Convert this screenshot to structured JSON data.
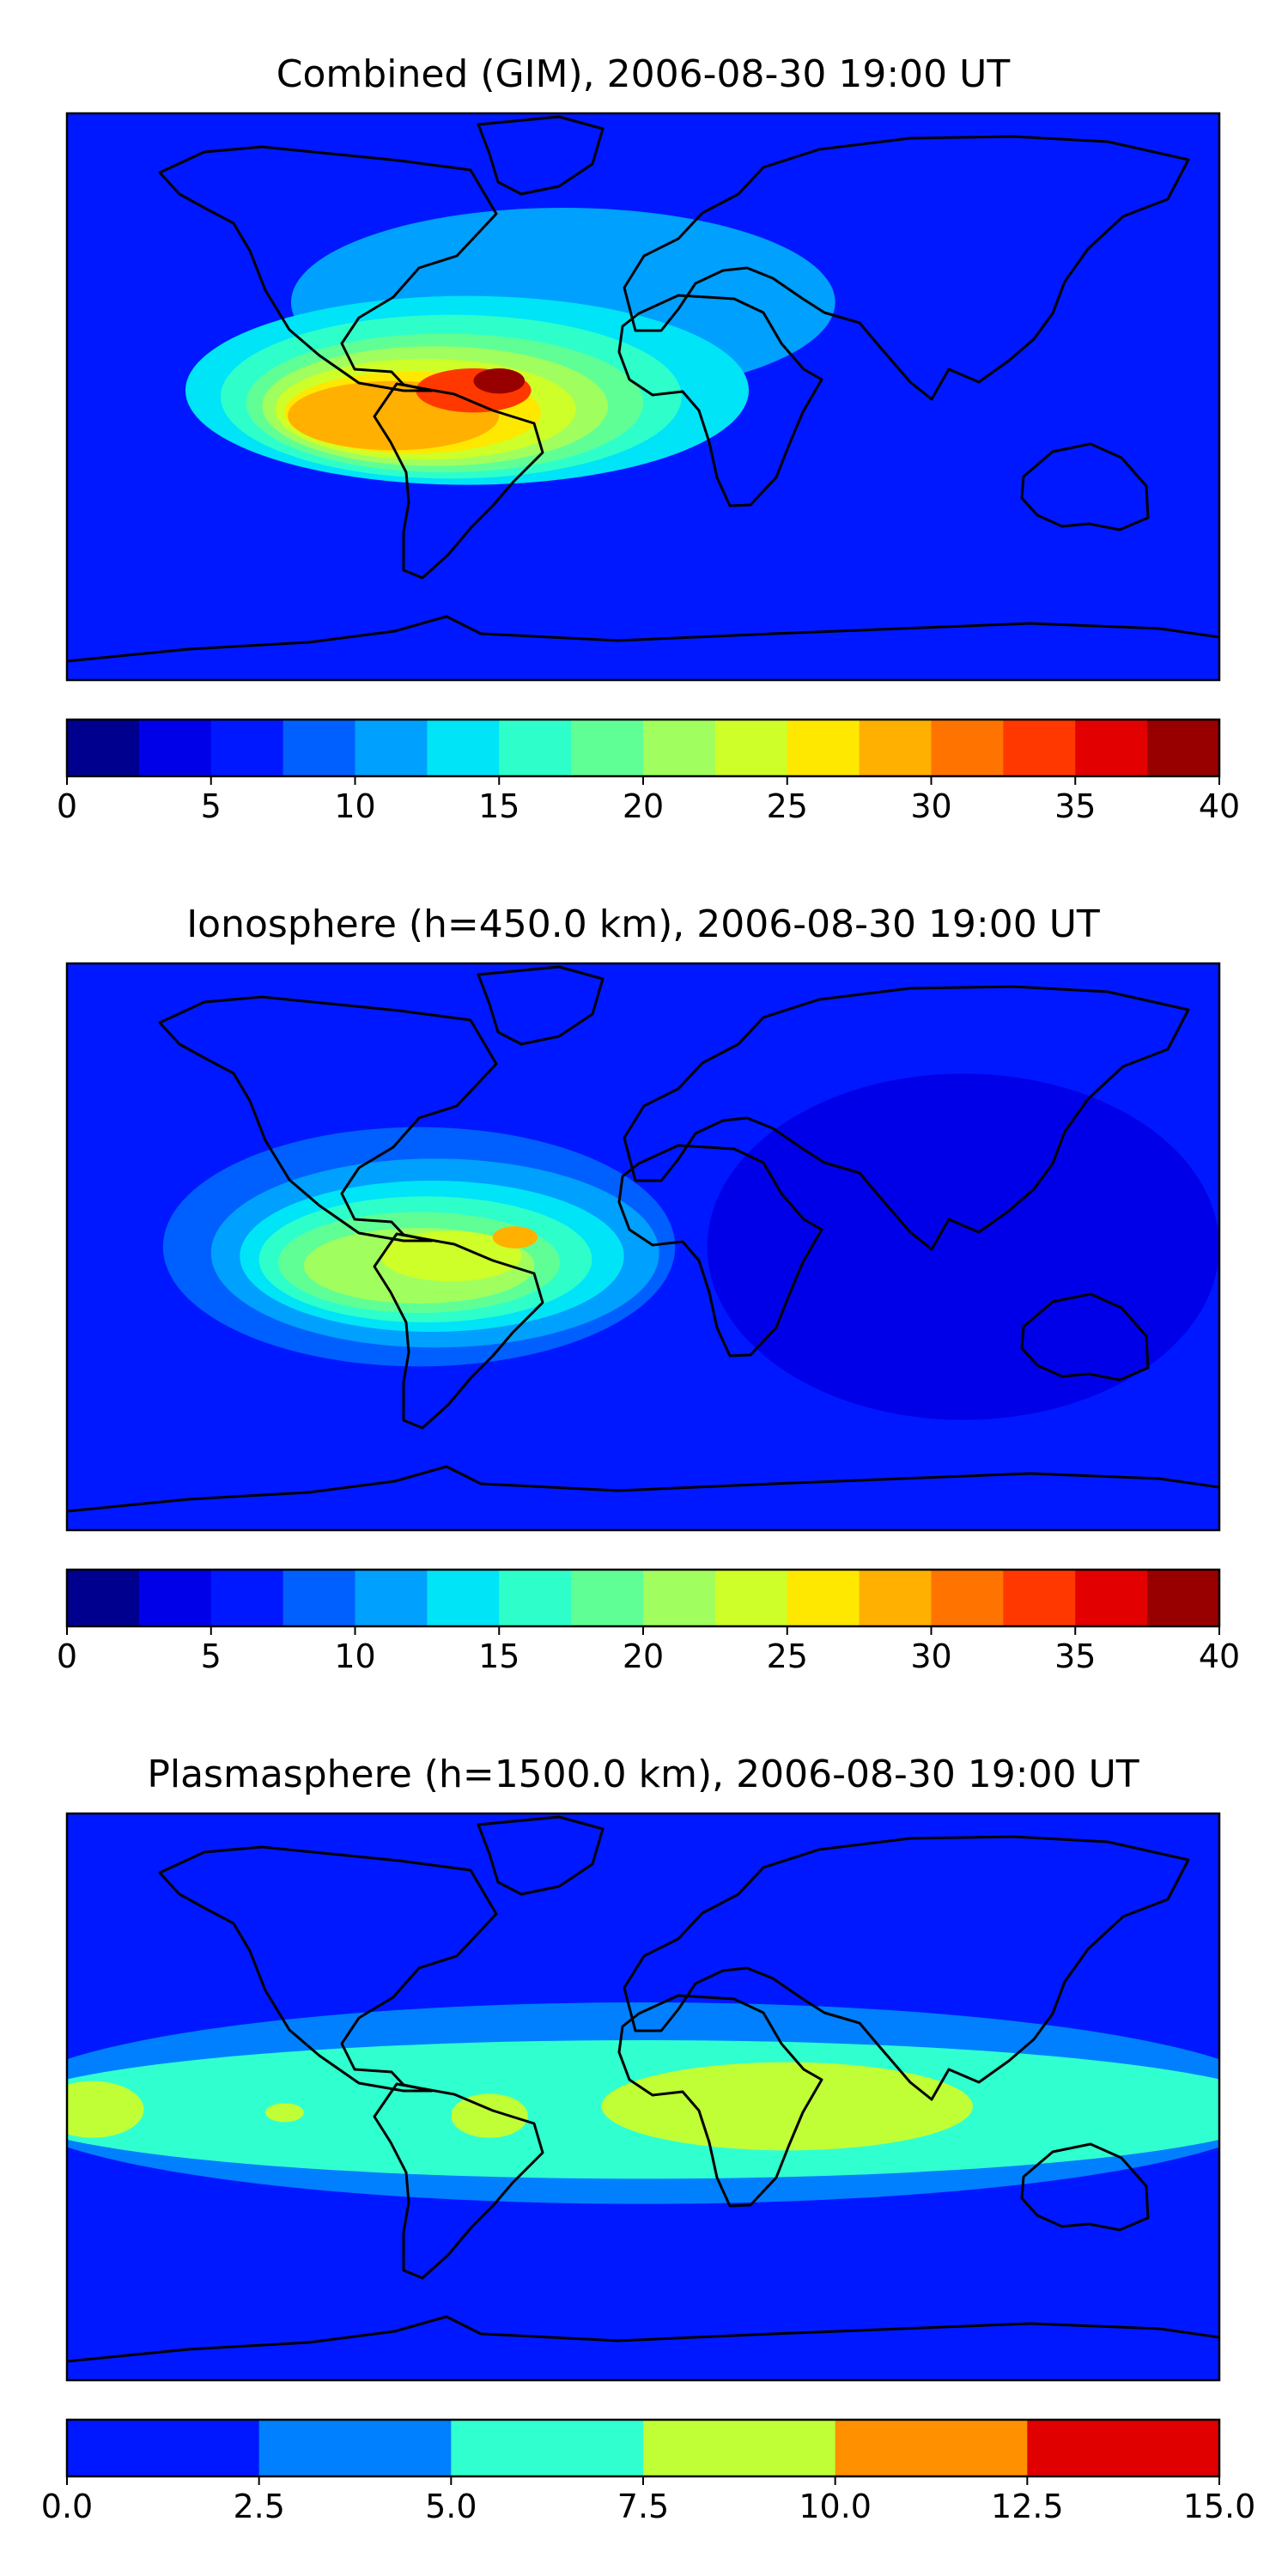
{
  "chart_data": [
    {
      "type": "heatmap",
      "title": "Combined (GIM), 2006-08-30 19:00 UT",
      "colorbar": {
        "range": [
          0,
          40
        ],
        "ticks": [
          "0",
          "5",
          "10",
          "15",
          "20",
          "25",
          "30",
          "35",
          "40"
        ],
        "colors": [
          "#00008f",
          "#0000e8",
          "#0018ff",
          "#0060ff",
          "#00a0ff",
          "#00e4f8",
          "#2effca",
          "#60ff96",
          "#a0ff5e",
          "#ceff28",
          "#ffe800",
          "#ffb000",
          "#ff7400",
          "#ff3800",
          "#e20000",
          "#980000"
        ]
      },
      "background_level": 5,
      "features": [
        {
          "name": "north-atlantic-arc",
          "lon": -25,
          "lat": 30,
          "rx": 85,
          "ry": 30,
          "value": 10
        },
        {
          "name": "equatorial-band",
          "lon": -55,
          "lat": 2,
          "rx": 88,
          "ry": 30,
          "value": 12.5
        },
        {
          "name": "anomaly-outer",
          "lon": -60,
          "lat": 0,
          "rx": 72,
          "ry": 26,
          "value": 15
        },
        {
          "name": "anomaly-ring-1",
          "lon": -62,
          "lat": -2,
          "rx": 62,
          "ry": 22,
          "value": 17.5
        },
        {
          "name": "anomaly-ring-2",
          "lon": -65,
          "lat": -3,
          "rx": 54,
          "ry": 19,
          "value": 20
        },
        {
          "name": "anomaly-ring-3",
          "lon": -68,
          "lat": -4,
          "rx": 47,
          "ry": 16,
          "value": 22.5
        },
        {
          "name": "anomaly-ring-4",
          "lon": -72,
          "lat": -5,
          "rx": 40,
          "ry": 13,
          "value": 25
        },
        {
          "name": "anomaly-ring-5",
          "lon": -78,
          "lat": -6,
          "rx": 33,
          "ry": 11,
          "value": 27.5
        },
        {
          "name": "anomaly-ring-6",
          "lon": -53,
          "lat": 2,
          "rx": 18,
          "ry": 7,
          "value": 32.5
        },
        {
          "name": "anomaly-peak",
          "lon": -45,
          "lat": 5,
          "rx": 8,
          "ry": 4,
          "value": 37.5
        }
      ]
    },
    {
      "type": "heatmap",
      "title": "Ionosphere  (h=450.0 km), 2006-08-30 19:00 UT",
      "colorbar": {
        "range": [
          0,
          40
        ],
        "ticks": [
          "0",
          "5",
          "10",
          "15",
          "20",
          "25",
          "30",
          "35",
          "40"
        ],
        "colors": [
          "#00008f",
          "#0000e8",
          "#0018ff",
          "#0060ff",
          "#00a0ff",
          "#00e4f8",
          "#2effca",
          "#60ff96",
          "#a0ff5e",
          "#ceff28",
          "#ffe800",
          "#ffb000",
          "#ff7400",
          "#ff3800",
          "#e20000",
          "#980000"
        ]
      },
      "background_level": 5,
      "features": [
        {
          "name": "night-trough",
          "lon": 100,
          "lat": 0,
          "rx": 80,
          "ry": 55,
          "value": 2.5
        },
        {
          "name": "west-band",
          "lon": -70,
          "lat": 0,
          "rx": 80,
          "ry": 38,
          "value": 7.5
        },
        {
          "name": "anomaly-outer",
          "lon": -65,
          "lat": -2,
          "rx": 70,
          "ry": 30,
          "value": 10
        },
        {
          "name": "anomaly-ring-1",
          "lon": -66,
          "lat": -3,
          "rx": 60,
          "ry": 24,
          "value": 12.5
        },
        {
          "name": "anomaly-ring-2",
          "lon": -68,
          "lat": -4,
          "rx": 52,
          "ry": 20,
          "value": 15
        },
        {
          "name": "anomaly-ring-3",
          "lon": -70,
          "lat": -5,
          "rx": 44,
          "ry": 16,
          "value": 17.5
        },
        {
          "name": "anomaly-ring-4",
          "lon": -70,
          "lat": -6,
          "rx": 36,
          "ry": 12,
          "value": 20
        },
        {
          "name": "anomaly-ring-5",
          "lon": -60,
          "lat": -3,
          "rx": 22,
          "ry": 8,
          "value": 22.5
        },
        {
          "name": "anomaly-peak",
          "lon": -40,
          "lat": 3,
          "rx": 7,
          "ry": 3.5,
          "value": 27.5
        }
      ]
    },
    {
      "type": "heatmap",
      "title": "Plasmasphere (h=1500.0 km), 2006-08-30 19:00 UT",
      "colorbar": {
        "range": [
          0,
          15
        ],
        "ticks": [
          "0.0",
          "2.5",
          "5.0",
          "7.5",
          "10.0",
          "12.5",
          "15.0"
        ],
        "colors": [
          "#0018ff",
          "#0080ff",
          "#30ffd0",
          "#c0ff36",
          "#ff9000",
          "#e00000"
        ]
      },
      "background_level": 0,
      "features": [
        {
          "name": "low-latitude-belt",
          "lon": 0,
          "lat": -2,
          "rx": 200,
          "ry": 32,
          "value": 2.5
        },
        {
          "name": "belt-core",
          "lon": 0,
          "lat": -4,
          "rx": 200,
          "ry": 22,
          "value": 5
        },
        {
          "name": "africa-maximum",
          "lon": 45,
          "lat": -3,
          "rx": 58,
          "ry": 14,
          "value": 7.5
        },
        {
          "name": "east-pacific-maximum",
          "lon": -172,
          "lat": -4,
          "rx": 16,
          "ry": 9,
          "value": 7.5
        },
        {
          "name": "central-pacific-spot",
          "lon": -112,
          "lat": -5,
          "rx": 6,
          "ry": 3,
          "value": 7.5
        },
        {
          "name": "south-america-spot",
          "lon": -48,
          "lat": -6,
          "rx": 12,
          "ry": 7,
          "value": 7.5
        }
      ]
    }
  ]
}
